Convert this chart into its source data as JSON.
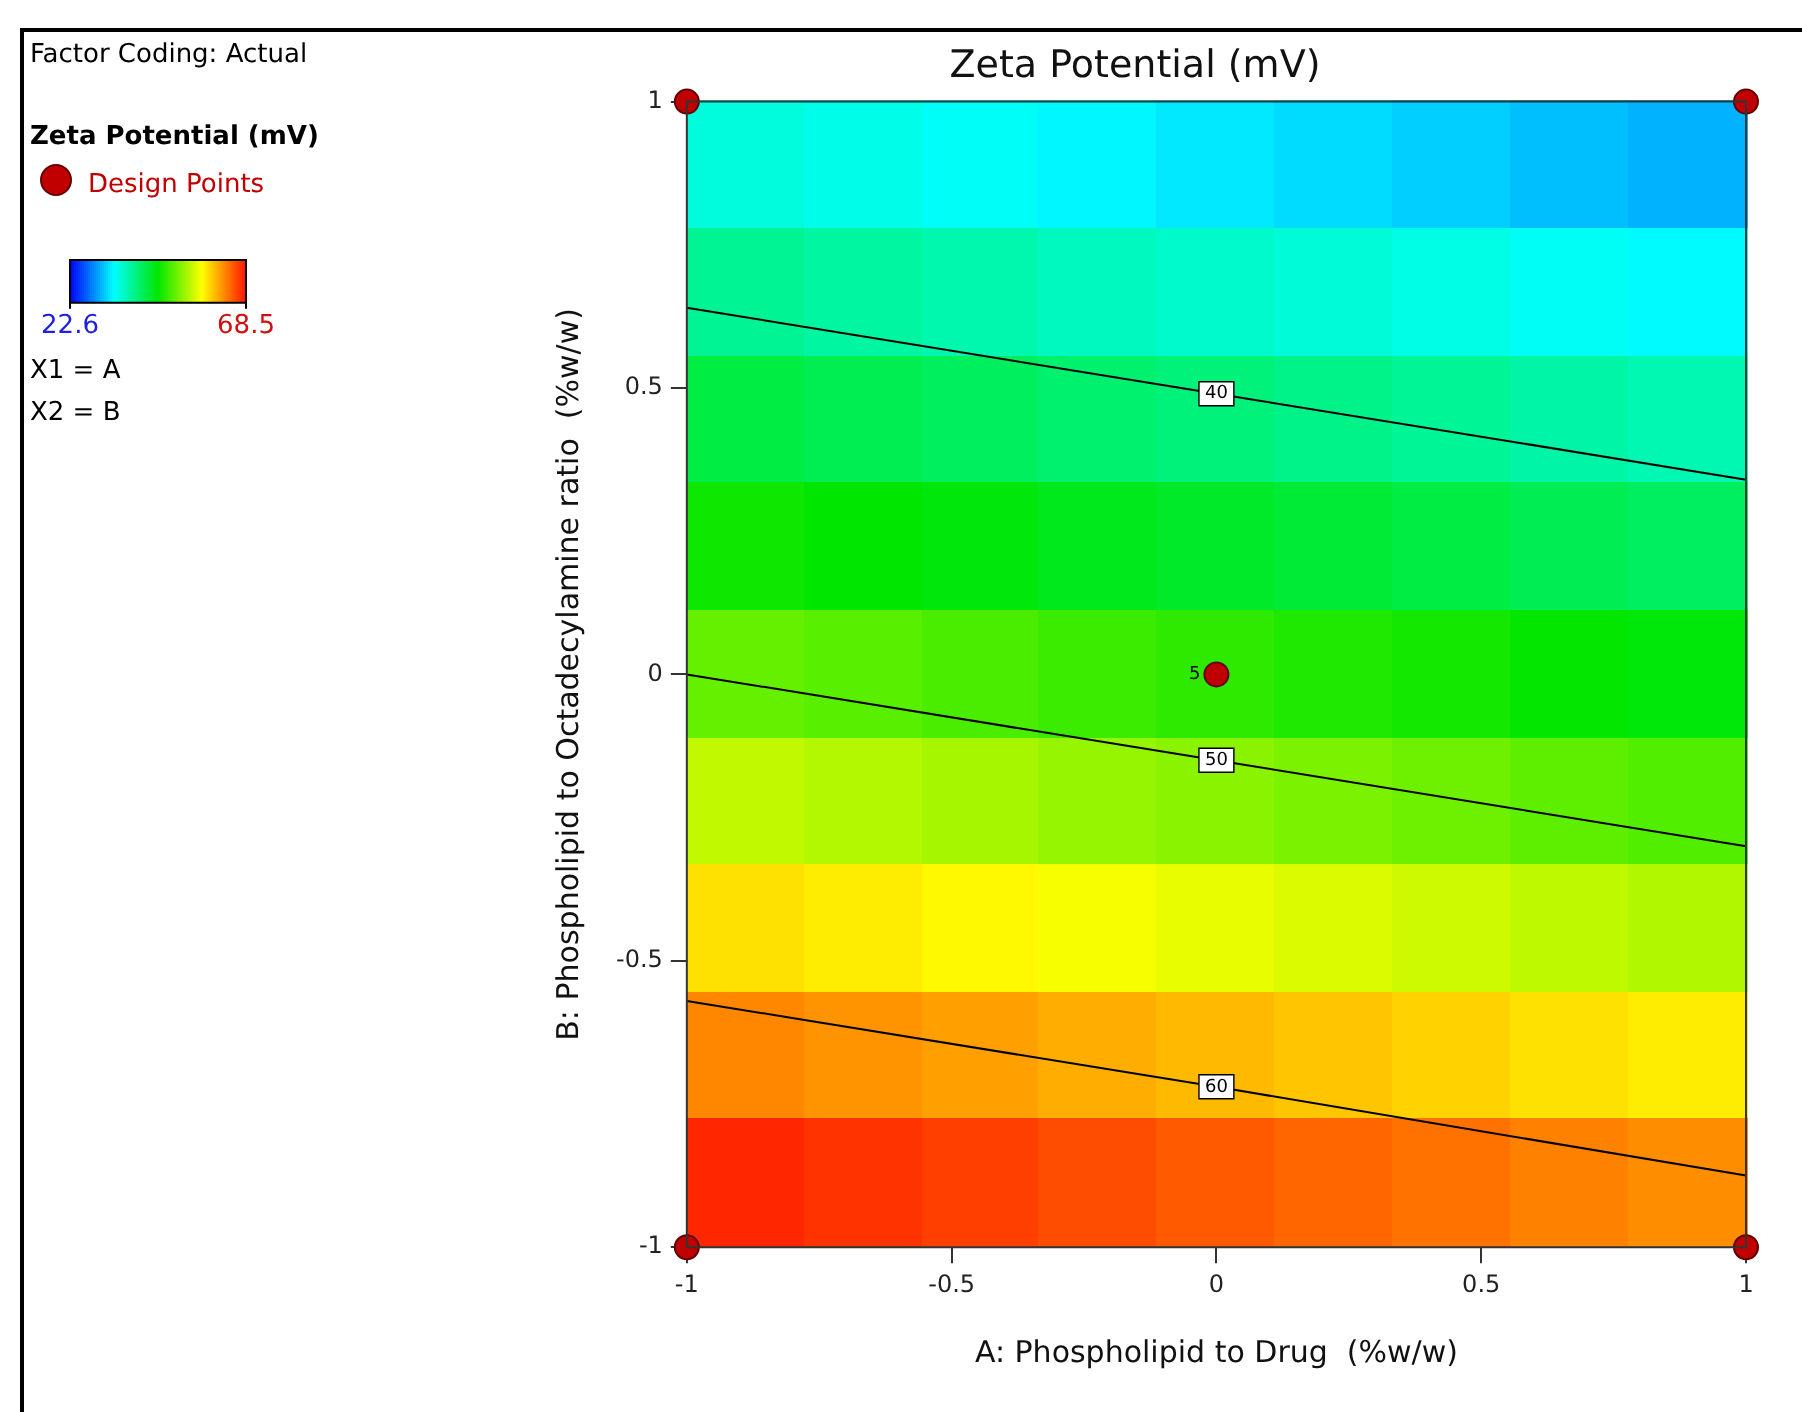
{
  "chart_data": {
    "type": "heatmap",
    "title": "Zeta Potential (mV)",
    "xlabel": "A: Phospholipid to Drug  (%w/w)",
    "ylabel": "B: Phospholipid to Octadecylamine ratio  (%w/w)",
    "legend_title": "Zeta Potential (mV)",
    "cells": [
      [
        35.6,
        35.0,
        34.4,
        33.7,
        33.1,
        32.5,
        31.9,
        31.2,
        30.6
      ],
      [
        38.9,
        38.3,
        37.7,
        37.0,
        36.4,
        35.8,
        35.2,
        34.5,
        33.9
      ],
      [
        42.5,
        41.9,
        41.3,
        40.6,
        40.0,
        39.4,
        38.8,
        38.1,
        37.5
      ],
      [
        46.2,
        45.6,
        45.0,
        44.3,
        43.7,
        43.1,
        42.5,
        41.8,
        41.2
      ],
      [
        50.1,
        49.5,
        48.9,
        48.2,
        47.6,
        47.0,
        46.4,
        45.7,
        45.1
      ],
      [
        54.2,
        53.6,
        53.0,
        52.3,
        51.7,
        51.1,
        50.5,
        49.8,
        49.2
      ],
      [
        58.5,
        57.9,
        57.3,
        56.6,
        56.0,
        55.4,
        54.8,
        54.1,
        53.5
      ],
      [
        62.9,
        62.3,
        61.7,
        61.0,
        60.4,
        59.8,
        59.2,
        58.5,
        57.9
      ],
      [
        67.6,
        67.0,
        66.4,
        65.7,
        65.1,
        64.5,
        63.9,
        63.2,
        62.6
      ]
    ],
    "clim": [
      22.6,
      68.5
    ],
    "cticks": [
      22.6,
      68.5
    ],
    "xlim": [
      -1,
      1
    ],
    "xticks": [
      -1,
      -0.5,
      0,
      0.5,
      1
    ],
    "ylim": [
      -1,
      1
    ],
    "yticks": [
      -1,
      -0.5,
      0,
      0.5,
      1
    ],
    "series": [
      {
        "type": "line",
        "name": "40",
        "color": "#000000",
        "x": [
          -1,
          0,
          1
        ],
        "values": [
          0.64,
          0.49,
          0.34
        ],
        "marker": "none"
      },
      {
        "type": "line",
        "name": "50",
        "color": "#000000",
        "x": [
          -1,
          0,
          1
        ],
        "values": [
          0,
          -0.15,
          -0.3
        ],
        "marker": "none"
      },
      {
        "type": "line",
        "name": "60",
        "color": "#000000",
        "x": [
          -1,
          0,
          1
        ],
        "values": [
          -0.57,
          -0.72,
          -0.875
        ],
        "marker": "none"
      },
      {
        "type": "scatter",
        "name": "Design Points",
        "color": "#c00000",
        "x": [
          -1,
          1,
          -1,
          1,
          0
        ],
        "values": [
          1,
          1,
          -1,
          -1,
          0
        ],
        "marker": "circle"
      }
    ],
    "annotations": [
      "Factor Coding: Actual",
      {
        "text": "5",
        "x": 0,
        "y": 0
      },
      "X1 = A",
      "X2 = B"
    ],
    "legend": "top left",
    "grid": false
  }
}
